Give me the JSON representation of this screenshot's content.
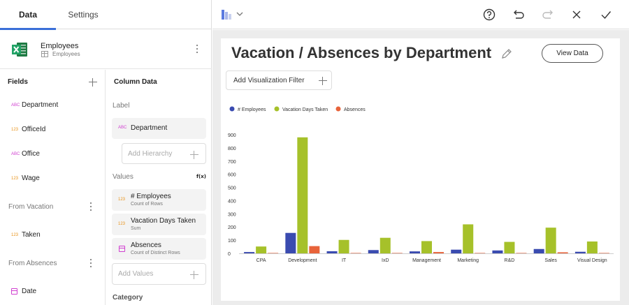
{
  "tabs": {
    "data": "Data",
    "settings": "Settings"
  },
  "datasource": {
    "title": "Employees",
    "subtitle": "Employees",
    "icon": "excel-icon"
  },
  "fields_panel": {
    "title": "Fields",
    "items": [
      {
        "type": "ABC",
        "label": "Department"
      },
      {
        "type": "123",
        "label": "OfficeId"
      },
      {
        "type": "ABC",
        "label": "Office"
      },
      {
        "type": "123",
        "label": "Wage"
      }
    ],
    "groups": [
      {
        "title": "From Vacation",
        "items": [
          {
            "type": "123",
            "label": "Taken"
          }
        ]
      },
      {
        "title": "From Absences",
        "items": [
          {
            "type": "date",
            "label": "Date"
          }
        ]
      }
    ]
  },
  "column_panel": {
    "title": "Column Data",
    "label_section": "Label",
    "label_pill": {
      "type": "ABC",
      "label": "Department"
    },
    "hierarchy_placeholder": "Add Hierarchy",
    "values_section": "Values",
    "fx": "f(x)",
    "values": [
      {
        "type": "123",
        "label": "# Employees",
        "sub": "Count of Rows"
      },
      {
        "type": "123",
        "label": "Vacation Days Taken",
        "sub": "Sum"
      },
      {
        "type": "date",
        "label": "Absences",
        "sub": "Count of Distinct Rows"
      }
    ],
    "values_placeholder": "Add Values",
    "category_section": "Category"
  },
  "toolbar": {
    "icons": [
      "bar-chart-icon",
      "help-icon",
      "undo-icon",
      "redo-icon",
      "close-icon",
      "check-icon"
    ]
  },
  "main": {
    "title": "Vacation / Absences by Department",
    "view_data_label": "View Data",
    "filter_label": "Add Visualization Filter"
  },
  "colors": {
    "employees": "#3a4bb0",
    "vacation": "#a6c12a",
    "absences": "#e8633a",
    "accent": "#3a6fd8"
  },
  "chart_data": {
    "type": "bar",
    "categories": [
      "CPA",
      "Development",
      "IT",
      "IxD",
      "Management",
      "Marketing",
      "R&D",
      "Sales",
      "Visual Design"
    ],
    "series": [
      {
        "name": "# Employees",
        "values": [
          10,
          155,
          16,
          25,
          15,
          28,
          22,
          33,
          12
        ]
      },
      {
        "name": "Vacation Days Taken",
        "values": [
          52,
          880,
          102,
          118,
          93,
          220,
          87,
          195,
          90
        ]
      },
      {
        "name": "Absences",
        "values": [
          3,
          55,
          3,
          3,
          10,
          3,
          3,
          8,
          3
        ]
      }
    ],
    "ylim": [
      0,
      900
    ],
    "yticks": [
      "0",
      "100",
      "200",
      "300",
      "400",
      "500",
      "600",
      "700",
      "800",
      "900"
    ],
    "legend_position": "top-left",
    "grid": false
  }
}
